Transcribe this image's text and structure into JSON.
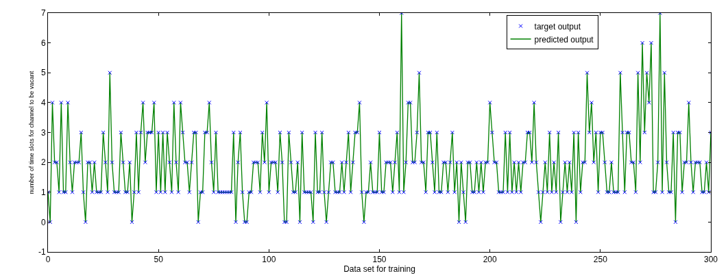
{
  "chart_data": {
    "type": "line",
    "xlabel": "Data set for training",
    "ylabel": "number of time slots for channel to be vacant",
    "x": [
      0,
      1,
      2,
      3,
      4,
      5,
      6,
      7,
      8,
      9,
      10,
      11,
      12,
      13,
      14,
      15,
      16,
      17,
      18,
      19,
      20,
      21,
      22,
      23,
      24,
      25,
      26,
      27,
      28,
      29,
      30,
      31,
      32,
      33,
      34,
      35,
      36,
      37,
      38,
      39,
      40,
      41,
      42,
      43,
      44,
      45,
      46,
      47,
      48,
      49,
      50,
      51,
      52,
      53,
      54,
      55,
      56,
      57,
      58,
      59,
      60,
      61,
      62,
      63,
      64,
      65,
      66,
      67,
      68,
      69,
      70,
      71,
      72,
      73,
      74,
      75,
      76,
      77,
      78,
      79,
      80,
      81,
      82,
      83,
      84,
      85,
      86,
      87,
      88,
      89,
      90,
      91,
      92,
      93,
      94,
      95,
      96,
      97,
      98,
      99,
      100,
      101,
      102,
      103,
      104,
      105,
      106,
      107,
      108,
      109,
      110,
      111,
      112,
      113,
      114,
      115,
      116,
      117,
      118,
      119,
      120,
      121,
      122,
      123,
      124,
      125,
      126,
      127,
      128,
      129,
      130,
      131,
      132,
      133,
      134,
      135,
      136,
      137,
      138,
      139,
      140,
      141,
      142,
      143,
      144,
      145,
      146,
      147,
      148,
      149,
      150,
      151,
      152,
      153,
      154,
      155,
      156,
      157,
      158,
      159,
      160,
      161,
      162,
      163,
      164,
      165,
      166,
      167,
      168,
      169,
      170,
      171,
      172,
      173,
      174,
      175,
      176,
      177,
      178,
      179,
      180,
      181,
      182,
      183,
      184,
      185,
      186,
      187,
      188,
      189,
      190,
      191,
      192,
      193,
      194,
      195,
      196,
      197,
      198,
      199,
      200,
      201,
      202,
      203,
      204,
      205,
      206,
      207,
      208,
      209,
      210,
      211,
      212,
      213,
      214,
      215,
      216,
      217,
      218,
      219,
      220,
      221,
      222,
      223,
      224,
      225,
      226,
      227,
      228,
      229,
      230,
      231,
      232,
      233,
      234,
      235,
      236,
      237,
      238,
      239,
      240,
      241,
      242,
      243,
      244,
      245,
      246,
      247,
      248,
      249,
      250,
      251,
      252,
      253,
      254,
      255,
      256,
      257,
      258,
      259,
      260,
      261,
      262,
      263,
      264,
      265,
      266,
      267,
      268,
      269,
      270,
      271,
      272,
      273,
      274,
      275,
      276,
      277,
      278,
      279,
      280,
      281,
      282,
      283,
      284,
      285,
      286,
      287,
      288,
      289,
      290,
      291,
      292,
      293,
      294,
      295,
      296,
      297,
      298,
      299,
      300
    ],
    "series": [
      {
        "name": "target output",
        "type": "scatter",
        "marker": "cross",
        "color": "#0000ff",
        "values": [
          1,
          0,
          4,
          2,
          2,
          1,
          4,
          1,
          1,
          4,
          2,
          1,
          2,
          2,
          2,
          3,
          1,
          0,
          2,
          2,
          1,
          2,
          1,
          1,
          1,
          3,
          2,
          1,
          5,
          2,
          1,
          1,
          1,
          3,
          2,
          1,
          1,
          2,
          0,
          1,
          3,
          1,
          3,
          4,
          2,
          3,
          3,
          3,
          4,
          1,
          3,
          1,
          3,
          1,
          3,
          2,
          1,
          4,
          2,
          1,
          4,
          3,
          2,
          2,
          1,
          2,
          3,
          3,
          0,
          1,
          1,
          3,
          3,
          4,
          2,
          1,
          3,
          1,
          1,
          1,
          1,
          1,
          1,
          1,
          3,
          0,
          2,
          3,
          1,
          0,
          0,
          1,
          1,
          2,
          2,
          2,
          1,
          3,
          2,
          4,
          1,
          2,
          2,
          2,
          1,
          3,
          2,
          0,
          0,
          3,
          2,
          1,
          1,
          2,
          0,
          3,
          1,
          1,
          1,
          1,
          0,
          3,
          1,
          1,
          3,
          1,
          0,
          1,
          2,
          2,
          1,
          1,
          1,
          2,
          1,
          2,
          3,
          1,
          2,
          3,
          3,
          4,
          1,
          0,
          1,
          1,
          2,
          1,
          1,
          1,
          3,
          1,
          1,
          2,
          2,
          2,
          1,
          2,
          3,
          1,
          7,
          1,
          2,
          4,
          4,
          2,
          2,
          3,
          5,
          2,
          2,
          1,
          3,
          3,
          2,
          1,
          3,
          1,
          1,
          2,
          2,
          1,
          2,
          3,
          1,
          2,
          0,
          2,
          1,
          0,
          2,
          2,
          1,
          1,
          2,
          1,
          2,
          1,
          2,
          2,
          4,
          3,
          2,
          2,
          1,
          1,
          1,
          3,
          1,
          3,
          1,
          2,
          1,
          2,
          1,
          2,
          2,
          3,
          3,
          2,
          4,
          2,
          1,
          0,
          1,
          2,
          1,
          3,
          1,
          2,
          1,
          3,
          0,
          1,
          2,
          1,
          2,
          1,
          3,
          0,
          3,
          1,
          2,
          2,
          5,
          3,
          4,
          2,
          3,
          1,
          3,
          3,
          2,
          1,
          1,
          2,
          1,
          1,
          1,
          5,
          3,
          1,
          3,
          3,
          2,
          2,
          1,
          5,
          2,
          6,
          3,
          5,
          4,
          6,
          1,
          1,
          2,
          7,
          1,
          5,
          2,
          1,
          1,
          3,
          0,
          3,
          3,
          1,
          2,
          2,
          4,
          2,
          1,
          2,
          2,
          2,
          1,
          1,
          2,
          1,
          3
        ]
      },
      {
        "name": "predicted output",
        "marker": "none",
        "line_style": "solid",
        "color": "#008000",
        "values": [
          1,
          0,
          4,
          2,
          2,
          1,
          4,
          1,
          1,
          4,
          2,
          1,
          2,
          2,
          2,
          3,
          1,
          0,
          2,
          2,
          1,
          2,
          1,
          1,
          1,
          3,
          2,
          1,
          5,
          2,
          1,
          1,
          1,
          3,
          2,
          1,
          1,
          2,
          0,
          1,
          3,
          1,
          3,
          4,
          2,
          3,
          3,
          3,
          4,
          1,
          3,
          1,
          3,
          1,
          3,
          2,
          1,
          4,
          2,
          1,
          4,
          3,
          2,
          2,
          1,
          2,
          3,
          3,
          0,
          1,
          1,
          3,
          3,
          4,
          2,
          1,
          3,
          1,
          1,
          1,
          1,
          1,
          1,
          1,
          3,
          0,
          2,
          3,
          1,
          0,
          0,
          1,
          1,
          2,
          2,
          2,
          1,
          3,
          2,
          4,
          1,
          2,
          2,
          2,
          1,
          3,
          2,
          0,
          0,
          3,
          2,
          1,
          1,
          2,
          0,
          3,
          1,
          1,
          1,
          1,
          0,
          3,
          1,
          1,
          3,
          1,
          0,
          1,
          2,
          2,
          1,
          1,
          1,
          2,
          1,
          2,
          3,
          1,
          2,
          3,
          3,
          4,
          1,
          0,
          1,
          1,
          2,
          1,
          1,
          1,
          3,
          1,
          1,
          2,
          2,
          2,
          1,
          2,
          3,
          1,
          7,
          1,
          2,
          4,
          4,
          2,
          2,
          3,
          5,
          2,
          2,
          1,
          3,
          3,
          2,
          1,
          3,
          1,
          1,
          2,
          2,
          1,
          2,
          3,
          1,
          2,
          0,
          2,
          1,
          0,
          2,
          2,
          1,
          1,
          2,
          1,
          2,
          1,
          2,
          2,
          4,
          3,
          2,
          2,
          1,
          1,
          1,
          3,
          1,
          3,
          1,
          2,
          1,
          2,
          1,
          2,
          2,
          3,
          3,
          2,
          4,
          2,
          1,
          0,
          1,
          2,
          1,
          3,
          1,
          2,
          1,
          3,
          0,
          1,
          2,
          1,
          2,
          1,
          3,
          0,
          3,
          1,
          2,
          2,
          5,
          3,
          4,
          2,
          3,
          1,
          3,
          3,
          2,
          1,
          1,
          2,
          1,
          1,
          1,
          5,
          3,
          1,
          3,
          3,
          2,
          2,
          1,
          5,
          2,
          6,
          3,
          5,
          4,
          6,
          1,
          1,
          2,
          7,
          1,
          5,
          2,
          1,
          1,
          3,
          0,
          3,
          3,
          1,
          2,
          2,
          4,
          2,
          1,
          2,
          2,
          2,
          1,
          1,
          2,
          1,
          3
        ]
      }
    ],
    "xlim": [
      0,
      300
    ],
    "xticks": [
      0,
      50,
      100,
      150,
      200,
      250,
      300
    ],
    "ylim": [
      -1,
      7
    ],
    "yticks": [
      -1,
      0,
      1,
      2,
      3,
      4,
      5,
      6,
      7
    ],
    "legend": "top right"
  }
}
